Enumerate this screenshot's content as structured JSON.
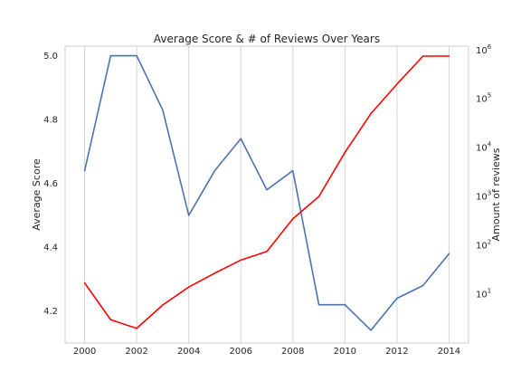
{
  "chart_data": {
    "type": "line",
    "title": "Average Score & # of Reviews Over Years",
    "x": [
      2000,
      2001,
      2002,
      2003,
      2004,
      2005,
      2006,
      2007,
      2008,
      2009,
      2010,
      2011,
      2012,
      2013,
      2014
    ],
    "xlim": [
      1999.25,
      2014.75
    ],
    "xticks": [
      "2000",
      "2002",
      "2004",
      "2006",
      "2008",
      "2010",
      "2012",
      "2014"
    ],
    "grid": "vertical",
    "left_axis": {
      "label": "Average Score",
      "scale": "linear",
      "ylim": [
        4.1,
        5.03
      ],
      "ticks": [
        "4.2",
        "4.4",
        "4.6",
        "4.8",
        "5.0"
      ]
    },
    "right_axis": {
      "label": "Amount of reviews",
      "scale": "log",
      "ylim": [
        1.0,
        1200000
      ],
      "ticks": [
        {
          "base": "10",
          "exp": "1",
          "value": 10
        },
        {
          "base": "10",
          "exp": "2",
          "value": 100
        },
        {
          "base": "10",
          "exp": "3",
          "value": 1000
        },
        {
          "base": "10",
          "exp": "4",
          "value": 10000
        },
        {
          "base": "10",
          "exp": "5",
          "value": 100000
        },
        {
          "base": "10",
          "exp": "6",
          "value": 1000000
        }
      ]
    },
    "series": [
      {
        "axis": "left",
        "color": "#4c72b0",
        "values": [
          4.64,
          5.0,
          5.0,
          4.83,
          4.5,
          4.64,
          4.74,
          4.58,
          4.64,
          4.22,
          4.22,
          4.14,
          4.24,
          4.28,
          4.38
        ]
      },
      {
        "axis": "right",
        "color": "#ff0000",
        "values": [
          17,
          3,
          2,
          6,
          14,
          27,
          50,
          75,
          350,
          1000,
          8000,
          50000,
          200000,
          750000,
          750000
        ]
      }
    ]
  }
}
